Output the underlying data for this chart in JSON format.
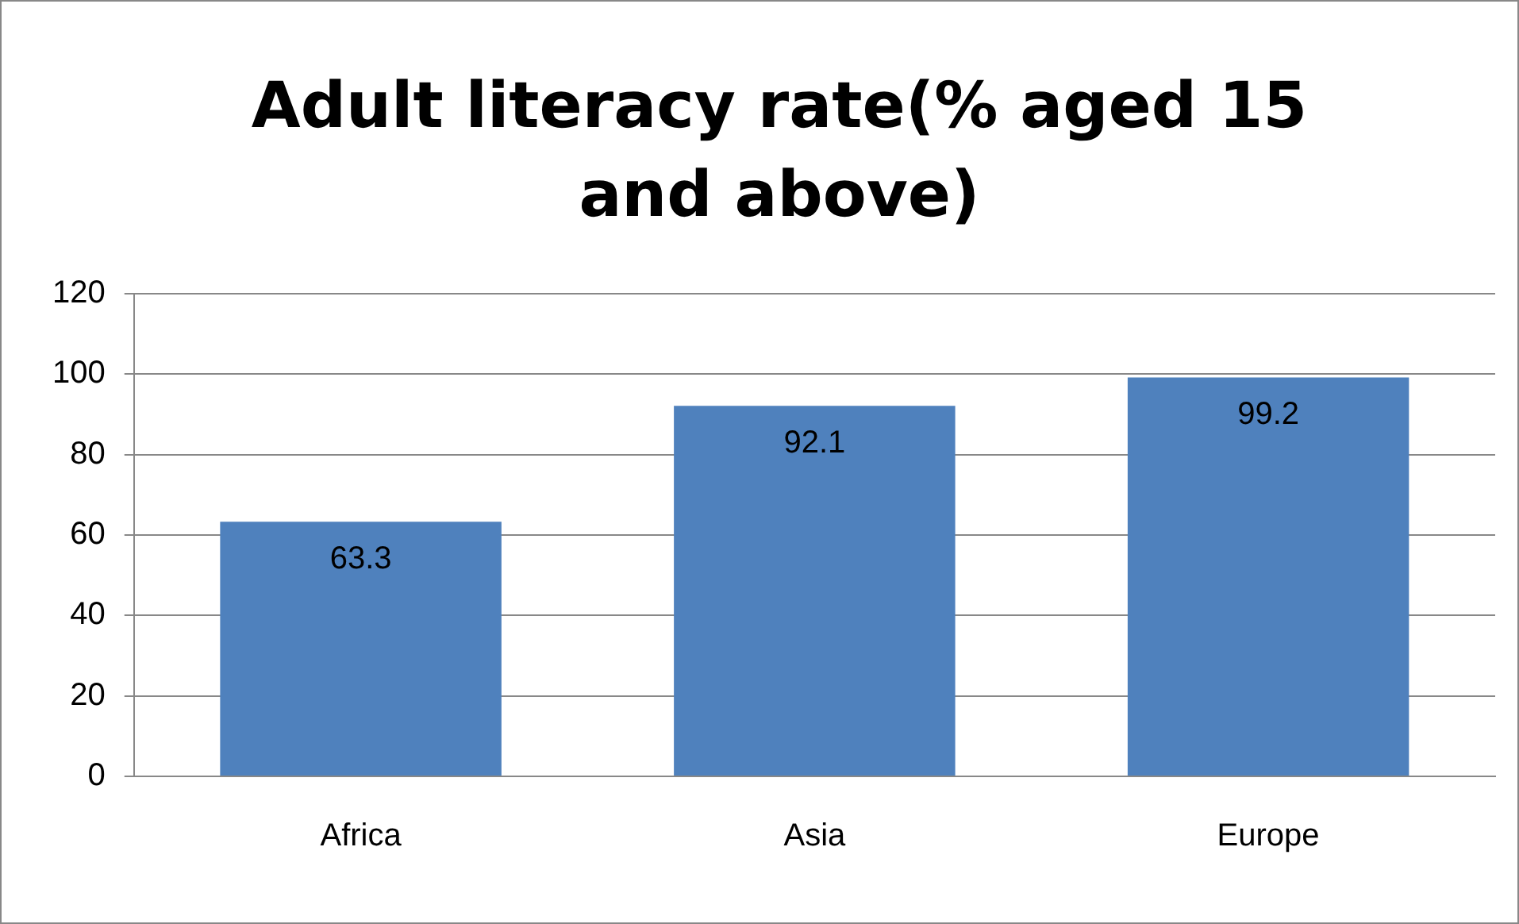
{
  "chart_data": {
    "type": "bar",
    "title": "Adult literacy rate(% aged 15 and above)",
    "categories": [
      "Africa",
      "Asia",
      "Europe"
    ],
    "values": [
      63.3,
      92.1,
      99.2
    ],
    "color": "#4f81bd",
    "ylim": [
      0,
      120
    ],
    "yticks": [
      0,
      20,
      40,
      60,
      80,
      100,
      120
    ],
    "grid": "y",
    "legend": false,
    "data_labels": true
  }
}
